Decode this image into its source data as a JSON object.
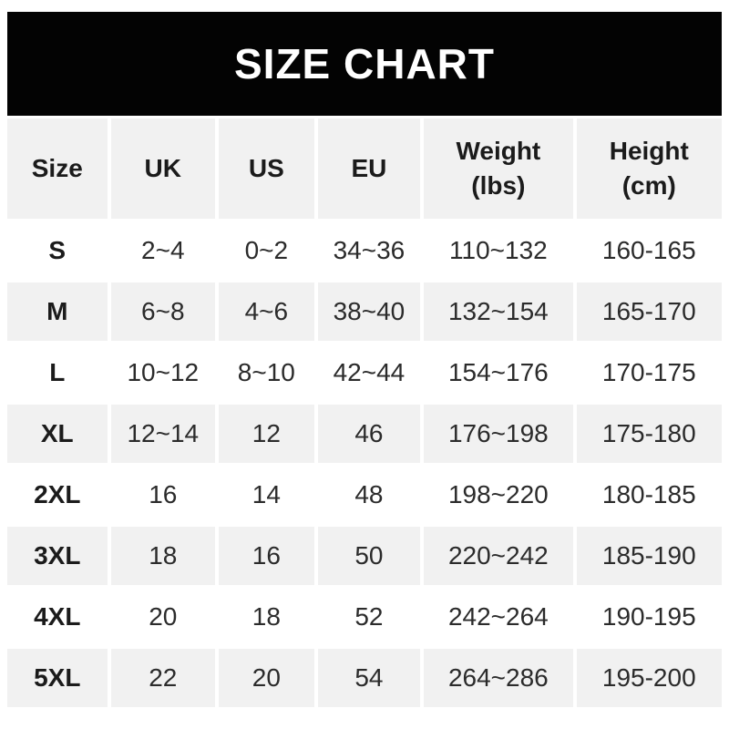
{
  "title": "SIZE CHART",
  "colors": {
    "page_bg": "#ffffff",
    "banner_bg": "#030303",
    "banner_text": "#ffffff",
    "stripe_bg": "#f1f1f1",
    "row_bg": "#ffffff",
    "text_color": "#2b2b2b",
    "strong_text_color": "#1b1b1b"
  },
  "table": {
    "columns": [
      "Size",
      "UK",
      "US",
      "EU",
      "Weight\n(lbs)",
      "Height\n(cm)"
    ]
  },
  "chart_data": {
    "type": "table",
    "title": "SIZE CHART",
    "columns": [
      "Size",
      "UK",
      "US",
      "EU",
      "Weight (lbs)",
      "Height (cm)"
    ],
    "rows": [
      [
        "S",
        "2~4",
        "0~2",
        "34~36",
        "110~132",
        "160-165"
      ],
      [
        "M",
        "6~8",
        "4~6",
        "38~40",
        "132~154",
        "165-170"
      ],
      [
        "L",
        "10~12",
        "8~10",
        "42~44",
        "154~176",
        "170-175"
      ],
      [
        "XL",
        "12~14",
        "12",
        "46",
        "176~198",
        "175-180"
      ],
      [
        "2XL",
        "16",
        "14",
        "48",
        "198~220",
        "180-185"
      ],
      [
        "3XL",
        "18",
        "16",
        "50",
        "220~242",
        "185-190"
      ],
      [
        "4XL",
        "20",
        "18",
        "52",
        "242~264",
        "190-195"
      ],
      [
        "5XL",
        "22",
        "20",
        "54",
        "264~286",
        "195-200"
      ]
    ],
    "layout": {
      "header_background": "#f1f1f1",
      "row_alternation": [
        "#ffffff",
        "#f1f1f1"
      ],
      "banner_background": "#030303"
    }
  }
}
